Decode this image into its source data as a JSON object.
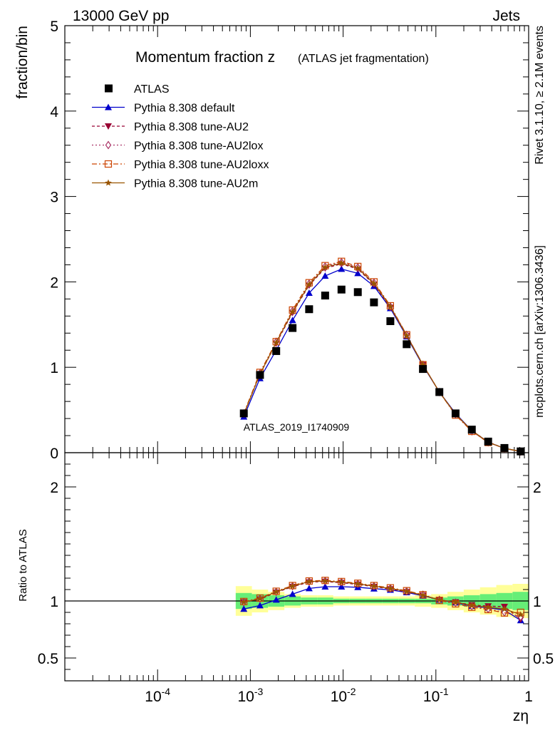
{
  "header": {
    "left": "13000 GeV pp",
    "right": "Jets"
  },
  "side_text": {
    "version": "Rivet 3.1.10, ≥ 2.1M events",
    "source": "mcplots.cern.ch [arXiv:1306.3436]"
  },
  "chart_data": {
    "type": "line",
    "title_main": "Momentum fraction z",
    "title_sub": "(ATLAS jet fragmentation)",
    "analysis_label": "ATLAS_2019_I1740909",
    "xlabel": "zη",
    "ylabel": "fraction/bin",
    "ratio_ylabel": "Ratio to ATLAS",
    "x_scale": "log",
    "xlim": [
      1e-05,
      1
    ],
    "ylim": [
      0,
      5
    ],
    "ratio_ylim": [
      0.3,
      2.3
    ],
    "x_tick_labels": [
      "10^-4",
      "10^-3",
      "10^-2",
      "10^-1",
      "1"
    ],
    "y_tick_labels": [
      "0",
      "1",
      "2",
      "3",
      "4",
      "5"
    ],
    "ratio_tick_labels": [
      "0.5",
      "1",
      "2"
    ],
    "legend_position": "top-left",
    "x": [
      0.00085,
      0.00127,
      0.0019,
      0.00285,
      0.0043,
      0.0064,
      0.0096,
      0.0144,
      0.0215,
      0.0323,
      0.0484,
      0.0725,
      0.109,
      0.163,
      0.244,
      0.366,
      0.548,
      0.82
    ],
    "atlas": {
      "name": "ATLAS",
      "color": "#000000",
      "values": [
        0.46,
        0.91,
        1.19,
        1.46,
        1.68,
        1.84,
        1.91,
        1.88,
        1.76,
        1.54,
        1.27,
        0.98,
        0.71,
        0.46,
        0.27,
        0.13,
        0.055,
        0.015
      ]
    },
    "series": [
      {
        "name": "Pythia 8.308 default",
        "color": "#0000cc",
        "marker": "triangle-up",
        "dash": "solid",
        "values": [
          0.42,
          0.87,
          1.2,
          1.55,
          1.87,
          2.07,
          2.15,
          2.1,
          1.95,
          1.69,
          1.36,
          1.02,
          0.71,
          0.46,
          0.26,
          0.123,
          0.051,
          0.013
        ],
        "ratio": [
          0.93,
          0.96,
          1.01,
          1.06,
          1.11,
          1.125,
          1.125,
          1.12,
          1.108,
          1.097,
          1.075,
          1.045,
          1.01,
          0.985,
          0.955,
          0.94,
          0.92,
          0.83
        ]
      },
      {
        "name": "Pythia 8.308 tune-AU2",
        "color": "#990033",
        "marker": "triangle-down",
        "dash": "4,3",
        "values": [
          0.45,
          0.92,
          1.28,
          1.64,
          1.96,
          2.16,
          2.21,
          2.15,
          1.97,
          1.7,
          1.37,
          1.03,
          0.71,
          0.45,
          0.26,
          0.124,
          0.052,
          0.014
        ],
        "ratio": [
          0.99,
          1.015,
          1.075,
          1.125,
          1.165,
          1.17,
          1.16,
          1.145,
          1.125,
          1.105,
          1.08,
          1.05,
          1.01,
          0.99,
          0.965,
          0.955,
          0.95,
          0.84
        ]
      },
      {
        "name": "Pythia 8.308 tune-AU2lox",
        "color": "#aa3366",
        "marker": "diamond-open",
        "dash": "2,3",
        "values": [
          0.46,
          0.93,
          1.3,
          1.66,
          1.98,
          2.18,
          2.23,
          2.17,
          1.99,
          1.71,
          1.38,
          1.03,
          0.71,
          0.45,
          0.25,
          0.121,
          0.05,
          0.013
        ],
        "ratio": [
          0.99,
          1.02,
          1.08,
          1.13,
          1.17,
          1.175,
          1.165,
          1.15,
          1.13,
          1.11,
          1.085,
          1.055,
          1.01,
          0.985,
          0.955,
          0.93,
          0.9,
          0.86
        ]
      },
      {
        "name": "Pythia 8.308 tune-AU2loxx",
        "color": "#cc4400",
        "marker": "square-open",
        "dash": "7,3,2,3",
        "values": [
          0.46,
          0.94,
          1.3,
          1.67,
          1.99,
          2.19,
          2.24,
          2.18,
          2.0,
          1.72,
          1.38,
          1.03,
          0.71,
          0.44,
          0.25,
          0.12,
          0.05,
          0.013
        ],
        "ratio": [
          0.995,
          1.025,
          1.085,
          1.135,
          1.175,
          1.18,
          1.17,
          1.155,
          1.135,
          1.115,
          1.09,
          1.055,
          1.005,
          0.975,
          0.945,
          0.925,
          0.895,
          0.9
        ]
      },
      {
        "name": "Pythia 8.308 tune-AU2m",
        "color": "#995500",
        "marker": "star",
        "dash": "solid",
        "values": [
          0.45,
          0.92,
          1.29,
          1.65,
          1.97,
          2.17,
          2.22,
          2.16,
          1.98,
          1.71,
          1.37,
          1.03,
          0.71,
          0.45,
          0.26,
          0.123,
          0.052,
          0.014
        ],
        "ratio": [
          0.99,
          1.02,
          1.08,
          1.13,
          1.17,
          1.175,
          1.165,
          1.15,
          1.13,
          1.11,
          1.085,
          1.05,
          1.01,
          0.99,
          0.96,
          0.945,
          0.93,
          0.88
        ]
      }
    ],
    "band_inner": [
      0.93,
      0.94,
      0.95,
      0.96,
      0.97,
      0.97,
      0.98,
      0.98,
      0.98,
      0.98,
      0.98,
      0.98,
      0.97,
      0.96,
      0.95,
      0.94,
      0.93,
      0.92
    ],
    "band_outer": [
      0.87,
      0.9,
      0.92,
      0.94,
      0.95,
      0.95,
      0.96,
      0.96,
      0.96,
      0.96,
      0.96,
      0.95,
      0.94,
      0.92,
      0.9,
      0.88,
      0.86,
      0.85
    ],
    "colors": {
      "band_inner": "#66ee77",
      "band_outer": "#ffff99",
      "analysis_label": "#999999",
      "side_text": "#777777"
    }
  }
}
